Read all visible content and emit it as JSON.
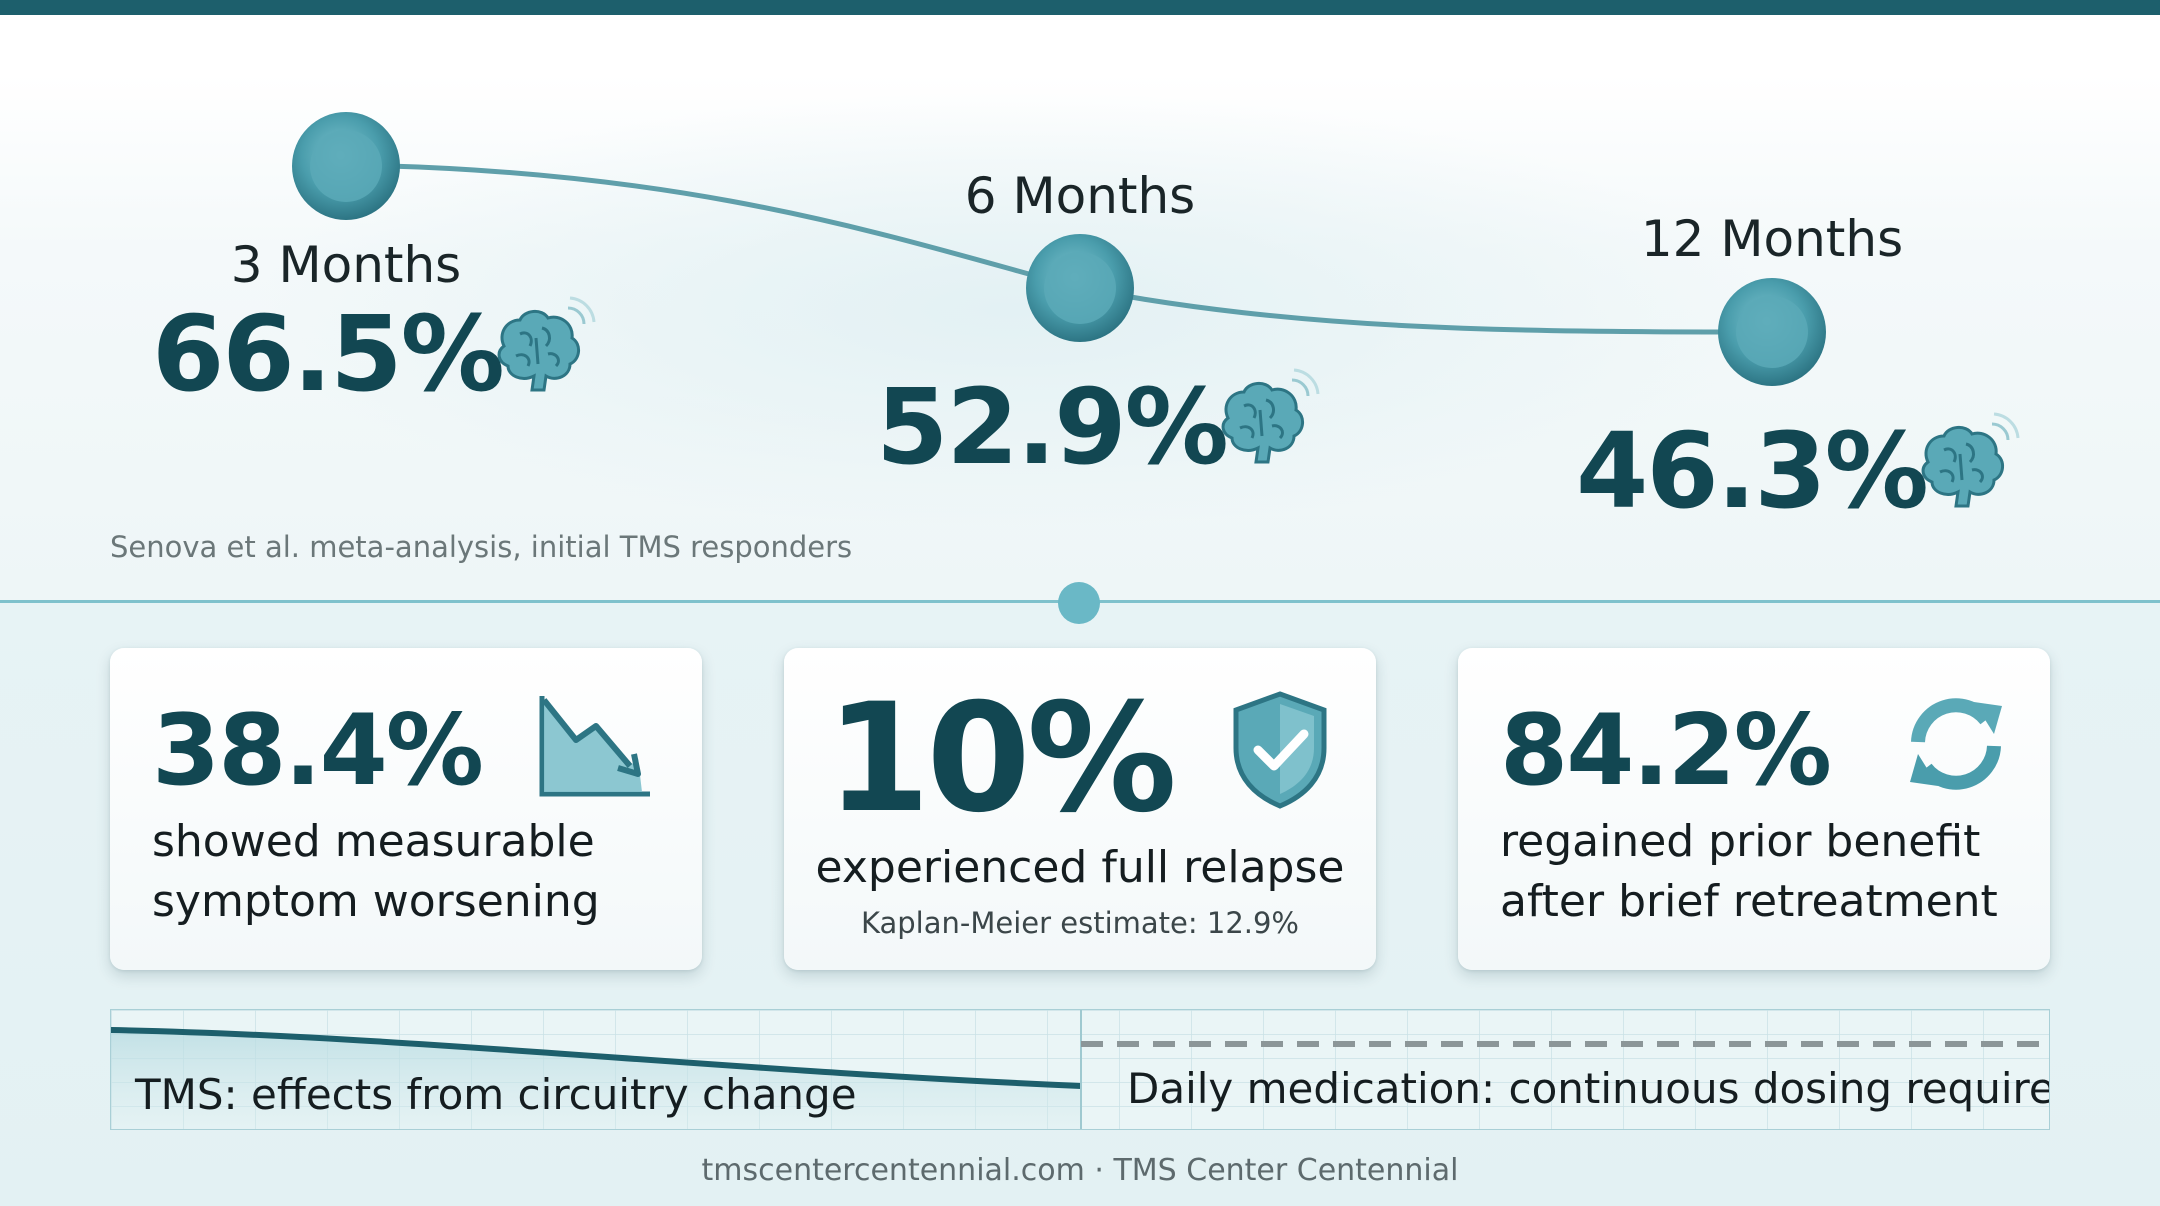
{
  "timeline": {
    "points": [
      {
        "label": "3 Months",
        "value": "66.5%"
      },
      {
        "label": "6 Months",
        "value": "52.9%"
      },
      {
        "label": "12 Months",
        "value": "46.3%"
      }
    ],
    "source_note": "Senova et al. meta-analysis, initial TMS responders"
  },
  "stats": [
    {
      "value": "38.4%",
      "description": "showed measurable symptom worsening",
      "icon": "trending-down-icon"
    },
    {
      "value": "10%",
      "description": "experienced full relapse",
      "subtext": "Kaplan-Meier estimate: 12.9%",
      "icon": "shield-check-icon"
    },
    {
      "value": "84.2%",
      "description": "regained prior benefit after brief retreatment",
      "icon": "refresh-icon"
    }
  ],
  "comparison": {
    "tms_label": "TMS: effects from circuitry change",
    "medication_label": "Daily medication: continuous dosing required"
  },
  "footer": "tmscentercentennial.com · TMS Center Centennial",
  "colors": {
    "accent_dark": "#124752",
    "accent": "#4a9dac",
    "top_bar": "#1d5f6c",
    "background_bottom": "#e5f2f4"
  }
}
